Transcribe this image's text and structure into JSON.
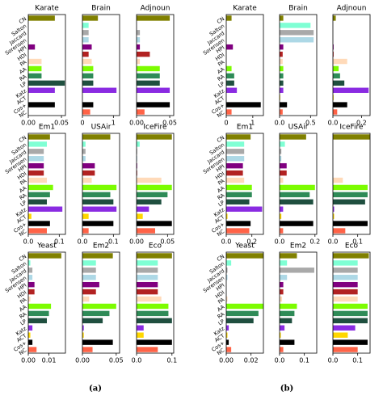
{
  "categories": [
    "CN",
    "Salton",
    "Jaccard",
    "Sorensen",
    "HPI",
    "HDI",
    "PA",
    "AA",
    "RA",
    "LP",
    "Katz",
    "ACT",
    "Cos+",
    "NC"
  ],
  "colors": [
    "#808000",
    "#7fffd4",
    "#a9a9a9",
    "#add8e6",
    "#800080",
    "#b22222",
    "#ffdab9",
    "#7cfc00",
    "#2e8b57",
    "#1f4f3f",
    "#8a2be2",
    "#ffd700",
    "#000000",
    "#ff6347"
  ],
  "panel_labels": [
    "(a)",
    "(b)"
  ],
  "chart_data": [
    {
      "type": "bar",
      "orientation": "horizontal",
      "title": "Karate",
      "values": [
        0.04,
        0,
        0,
        0,
        0.01,
        0,
        0.02,
        0.02,
        0.02,
        0.055,
        0.04,
        0,
        0.04,
        0
      ],
      "xlim": [
        0,
        0.056
      ],
      "xticks": [
        {
          "value": 0,
          "label": "0.00"
        },
        0.05
      ]
    },
    {
      "type": "bar",
      "orientation": "horizontal",
      "title": "Brain",
      "values": [
        0.5,
        0.2,
        0.2,
        0.2,
        0.3,
        0.2,
        0.3,
        0.35,
        0.35,
        0.35,
        1.1,
        0,
        0.35,
        0.25
      ],
      "xlim": [
        0,
        1.2
      ],
      "xticks": [
        0,
        1
      ]
    },
    {
      "type": "bar",
      "orientation": "horizontal",
      "title": "Adjnoun",
      "values": [
        0.05,
        0,
        0.005,
        0.005,
        0.005,
        0.02,
        0.005,
        0.035,
        0.035,
        0.035,
        0.05,
        0,
        0.05,
        0.012
      ],
      "xlim": [
        0,
        0.056
      ],
      "xticks": [
        {
          "value": 0,
          "label": "0.00"
        },
        0.05
      ]
    },
    {
      "type": "bar",
      "orientation": "horizontal",
      "title": "Em1",
      "values": [
        0.07,
        0.06,
        0.05,
        0.05,
        0.05,
        0.05,
        0.06,
        0.08,
        0.07,
        0.06,
        0.11,
        0.01,
        0.07,
        0.06
      ],
      "xlim": [
        0,
        0.12
      ],
      "xticks": [
        {
          "value": 0,
          "label": "0.0"
        },
        0.1
      ]
    },
    {
      "type": "bar",
      "orientation": "horizontal",
      "title": "USAir",
      "values": [
        0.09,
        0.01,
        0.01,
        0.01,
        0.04,
        0.04,
        0.03,
        0.11,
        0.09,
        0.1,
        0.11,
        0.02,
        0.1,
        0.02
      ],
      "xlim": [
        0,
        0.12
      ],
      "xticks": [
        {
          "value": 0,
          "label": "0.0"
        },
        0.1
      ]
    },
    {
      "type": "bar",
      "orientation": "horizontal",
      "title": "IceFire",
      "values": [
        0.057,
        0.005,
        0.001,
        0.001,
        0.001,
        0.001,
        0.04,
        0.057,
        0.05,
        0.04,
        0.02,
        0.01,
        0.057,
        0.03
      ],
      "xlim": [
        0,
        0.06
      ],
      "xticks": [
        {
          "value": 0,
          "label": "0.00"
        },
        0.05
      ]
    },
    {
      "type": "bar",
      "orientation": "horizontal",
      "title": "Yeast",
      "values": [
        0.016,
        0.001,
        0.002,
        0.002,
        0.003,
        0.003,
        0.001,
        0.011,
        0.01,
        0.009,
        0.002,
        0.001,
        0.002,
        0.004
      ],
      "xlim": [
        0,
        0.018
      ],
      "xticks": [
        {
          "value": 0,
          "label": "0.00"
        },
        0.01
      ]
    },
    {
      "type": "bar",
      "orientation": "horizontal",
      "title": "Em2",
      "values": [
        0.045,
        0.02,
        0.02,
        0.02,
        0.025,
        0.02,
        0.01,
        0.05,
        0.04,
        0.03,
        0.002,
        0.002,
        0.045,
        0.015
      ],
      "xlim": [
        0,
        0.055
      ],
      "xticks": [
        {
          "value": 0,
          "label": "0.00"
        },
        0.05
      ]
    },
    {
      "type": "bar",
      "orientation": "horizontal",
      "title": "Eco",
      "values": [
        0.1,
        0.06,
        0.06,
        0.06,
        0.06,
        0.06,
        0.07,
        0.09,
        0.09,
        0.1,
        0.02,
        0.02,
        0.1,
        0.06
      ],
      "xlim": [
        0,
        0.105
      ],
      "xticks": [
        {
          "value": 0,
          "label": "0.0"
        },
        0.1
      ]
    },
    {
      "type": "bar",
      "orientation": "horizontal",
      "title": "Karate",
      "values": [
        0.2,
        0,
        0,
        0,
        0.25,
        0,
        0,
        0.2,
        0.3,
        0.3,
        0.4,
        0,
        1.3,
        0.2
      ],
      "xlim": [
        0,
        1.4
      ],
      "xticks": [
        0,
        1
      ]
    },
    {
      "type": "bar",
      "orientation": "horizontal",
      "title": "Brain",
      "values": [
        0.06,
        0.5,
        0.55,
        0.55,
        0.06,
        0.05,
        0.05,
        0.06,
        0.06,
        0.06,
        0.06,
        0.01,
        0.12,
        0.05
      ],
      "xlim": [
        0,
        0.6
      ],
      "xticks": [
        {
          "value": 0,
          "label": "0.0"
        },
        0.5
      ]
    },
    {
      "type": "bar",
      "orientation": "horizontal",
      "title": "Adjnoun",
      "values": [
        0.02,
        0,
        0,
        0,
        0.005,
        0.005,
        0.1,
        0.04,
        0.05,
        0.08,
        0.25,
        0.005,
        0.1,
        0.03
      ],
      "xlim": [
        0,
        0.26
      ],
      "xticks": [
        {
          "value": 0,
          "label": "0.0"
        },
        0.2
      ]
    },
    {
      "type": "bar",
      "orientation": "horizontal",
      "title": "Em1",
      "values": [
        0.19,
        0.14,
        0.14,
        0.14,
        0.13,
        0.13,
        0.14,
        0.2,
        0.2,
        0.18,
        0.28,
        0.01,
        0.19,
        0.18
      ],
      "xlim": [
        0,
        0.29
      ],
      "xticks": [
        {
          "value": 0,
          "label": "0.0"
        },
        0.2
      ]
    },
    {
      "type": "bar",
      "orientation": "horizontal",
      "title": "USAir",
      "values": [
        0.15,
        0.03,
        0.01,
        0.01,
        0.04,
        0.04,
        0.02,
        0.2,
        0.17,
        0.19,
        0.02,
        0.01,
        0.19,
        0.02
      ],
      "xlim": [
        0,
        0.21
      ],
      "xticks": [
        {
          "value": 0,
          "label": "0.0"
        },
        0.2
      ]
    },
    {
      "type": "bar",
      "orientation": "horizontal",
      "title": "IceFire",
      "values": [
        0.15,
        0,
        0,
        0,
        0,
        0,
        0.04,
        0.14,
        0.14,
        0.13,
        0.005,
        0.005,
        0.14,
        0.05
      ],
      "xlim": [
        0,
        0.15
      ],
      "xticks": [
        {
          "value": 0,
          "label": "0.0"
        },
        0.1
      ]
    },
    {
      "type": "bar",
      "orientation": "horizontal",
      "title": "Yeast",
      "values": [
        0.03,
        0.004,
        0.001,
        0.001,
        0,
        0,
        0.001,
        0.03,
        0.026,
        0.022,
        0.002,
        0.001,
        0.002,
        0.004
      ],
      "xlim": [
        0,
        0.03
      ],
      "xticks": [
        {
          "value": 0,
          "label": "0.00"
        },
        0.02
      ]
    },
    {
      "type": "bar",
      "orientation": "horizontal",
      "title": "Em2",
      "values": [
        0.07,
        0.03,
        0.14,
        0.03,
        0.015,
        0.015,
        0.01,
        0.07,
        0.06,
        0.05,
        0.02,
        0.005,
        0.06,
        0.015
      ],
      "xlim": [
        0,
        0.15
      ],
      "xticks": [
        {
          "value": 0,
          "label": "0.0"
        },
        0.1
      ]
    },
    {
      "type": "bar",
      "orientation": "horizontal",
      "title": "Eco",
      "values": [
        0.145,
        0.1,
        0.1,
        0.1,
        0.1,
        0.1,
        0.1,
        0.14,
        0.14,
        0.14,
        0.09,
        0.06,
        0.14,
        0.1
      ],
      "xlim": [
        0,
        0.15
      ],
      "xticks": [
        {
          "value": 0,
          "label": "0.0"
        },
        0.1
      ]
    }
  ]
}
